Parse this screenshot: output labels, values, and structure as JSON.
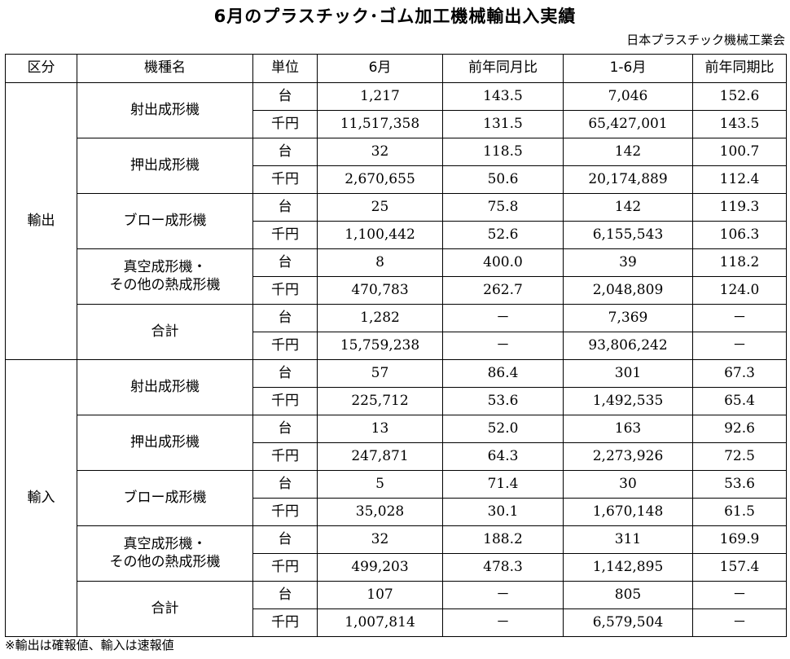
{
  "title": "6月のプラスチック･ゴム加工機械輸出入実績",
  "organization": "日本プラスチック機械工業会",
  "headers": [
    "区分",
    "機種名",
    "単位",
    "6月",
    "前年同月比",
    "1-6月",
    "前年同期比"
  ],
  "units": {
    "count": "台",
    "yen": "千円"
  },
  "sections": [
    {
      "label": "輸出",
      "machines": [
        {
          "name": [
            "射出成形機"
          ],
          "rows": [
            {
              "month": "1,217",
              "yoy_month": "143.5",
              "ytd": "7,046",
              "yoy_period": "152.6"
            },
            {
              "month": "11,517,358",
              "yoy_month": "131.5",
              "ytd": "65,427,001",
              "yoy_period": "143.5"
            }
          ]
        },
        {
          "name": [
            "押出成形機"
          ],
          "rows": [
            {
              "month": "32",
              "yoy_month": "118.5",
              "ytd": "142",
              "yoy_period": "100.7"
            },
            {
              "month": "2,670,655",
              "yoy_month": "50.6",
              "ytd": "20,174,889",
              "yoy_period": "112.4"
            }
          ]
        },
        {
          "name": [
            "ブロー成形機"
          ],
          "rows": [
            {
              "month": "25",
              "yoy_month": "75.8",
              "ytd": "142",
              "yoy_period": "119.3"
            },
            {
              "month": "1,100,442",
              "yoy_month": "52.6",
              "ytd": "6,155,543",
              "yoy_period": "106.3"
            }
          ]
        },
        {
          "name": [
            "真空成形機・",
            "その他の熱成形機"
          ],
          "rows": [
            {
              "month": "8",
              "yoy_month": "400.0",
              "ytd": "39",
              "yoy_period": "118.2"
            },
            {
              "month": "470,783",
              "yoy_month": "262.7",
              "ytd": "2,048,809",
              "yoy_period": "124.0"
            }
          ]
        },
        {
          "name": [
            "合計"
          ],
          "rows": [
            {
              "month": "1,282",
              "yoy_month": "－",
              "ytd": "7,369",
              "yoy_period": "－"
            },
            {
              "month": "15,759,238",
              "yoy_month": "－",
              "ytd": "93,806,242",
              "yoy_period": "－"
            }
          ]
        }
      ]
    },
    {
      "label": "輸入",
      "machines": [
        {
          "name": [
            "射出成形機"
          ],
          "rows": [
            {
              "month": "57",
              "yoy_month": "86.4",
              "ytd": "301",
              "yoy_period": "67.3"
            },
            {
              "month": "225,712",
              "yoy_month": "53.6",
              "ytd": "1,492,535",
              "yoy_period": "65.4"
            }
          ]
        },
        {
          "name": [
            "押出成形機"
          ],
          "rows": [
            {
              "month": "13",
              "yoy_month": "52.0",
              "ytd": "163",
              "yoy_period": "92.6"
            },
            {
              "month": "247,871",
              "yoy_month": "64.3",
              "ytd": "2,273,926",
              "yoy_period": "72.5"
            }
          ]
        },
        {
          "name": [
            "ブロー成形機"
          ],
          "rows": [
            {
              "month": "5",
              "yoy_month": "71.4",
              "ytd": "30",
              "yoy_period": "53.6"
            },
            {
              "month": "35,028",
              "yoy_month": "30.1",
              "ytd": "1,670,148",
              "yoy_period": "61.5"
            }
          ]
        },
        {
          "name": [
            "真空成形機・",
            "その他の熱成形機"
          ],
          "rows": [
            {
              "month": "32",
              "yoy_month": "188.2",
              "ytd": "311",
              "yoy_period": "169.9"
            },
            {
              "month": "499,203",
              "yoy_month": "478.3",
              "ytd": "1,142,895",
              "yoy_period": "157.4"
            }
          ]
        },
        {
          "name": [
            "合計"
          ],
          "rows": [
            {
              "month": "107",
              "yoy_month": "－",
              "ytd": "805",
              "yoy_period": "－"
            },
            {
              "month": "1,007,814",
              "yoy_month": "－",
              "ytd": "6,579,504",
              "yoy_period": "－"
            }
          ]
        }
      ]
    }
  ],
  "footnote": "※輸出は確報値、輸入は速報値"
}
